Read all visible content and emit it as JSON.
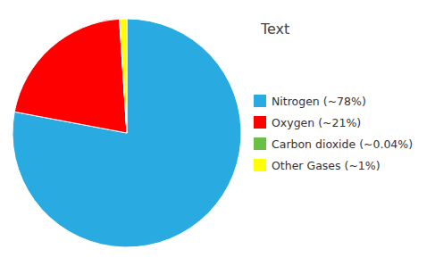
{
  "chart_data": {
    "type": "pie",
    "title": "Text",
    "categories": [
      "Nitrogen (~78%)",
      "Oxygen (~21%)",
      "Carbon dioxide (~0.04%)",
      "Other Gases (~1%)"
    ],
    "values": [
      78,
      21,
      0.04,
      1
    ],
    "colors": [
      "#29ABE2",
      "#FF0000",
      "#6ABF45",
      "#FFFF00"
    ],
    "legend": "right"
  }
}
